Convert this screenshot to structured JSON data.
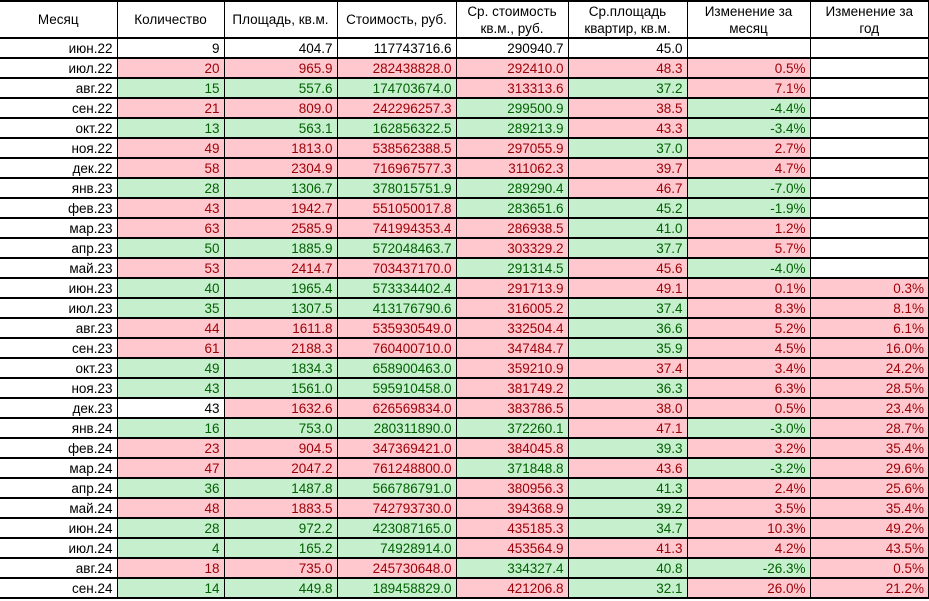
{
  "table": {
    "columns": [
      {
        "label": "Месяц"
      },
      {
        "label": "Количество"
      },
      {
        "label": "Площадь, кв.м."
      },
      {
        "label": "Стоимость, руб."
      },
      {
        "label": "Ср. стоимость кв.м., руб."
      },
      {
        "label": "Ср.площадь квартир, кв.м."
      },
      {
        "label": "Изменение за месяц"
      },
      {
        "label": "Изменение за год"
      }
    ],
    "legend": {
      "n": "plain white cell",
      "r": "red (worse) cell",
      "g": "green (better) cell",
      "e": "empty white cell"
    },
    "rows": [
      {
        "m": "июн.22",
        "c": [
          [
            "9",
            "n"
          ],
          [
            "404.7",
            "n"
          ],
          [
            "117743716.6",
            "n"
          ],
          [
            "290940.7",
            "n"
          ],
          [
            "45.0",
            "n"
          ],
          [
            "",
            "e"
          ],
          [
            "",
            "e"
          ]
        ]
      },
      {
        "m": "июл.22",
        "c": [
          [
            "20",
            "r"
          ],
          [
            "965.9",
            "r"
          ],
          [
            "282438828.0",
            "r"
          ],
          [
            "292410.0",
            "r"
          ],
          [
            "48.3",
            "r"
          ],
          [
            "0.5%",
            "r"
          ],
          [
            "",
            "e"
          ]
        ]
      },
      {
        "m": "авг.22",
        "c": [
          [
            "15",
            "g"
          ],
          [
            "557.6",
            "g"
          ],
          [
            "174703674.0",
            "g"
          ],
          [
            "313313.6",
            "r"
          ],
          [
            "37.2",
            "g"
          ],
          [
            "7.1%",
            "r"
          ],
          [
            "",
            "e"
          ]
        ]
      },
      {
        "m": "сен.22",
        "c": [
          [
            "21",
            "r"
          ],
          [
            "809.0",
            "r"
          ],
          [
            "242296257.3",
            "r"
          ],
          [
            "299500.9",
            "g"
          ],
          [
            "38.5",
            "r"
          ],
          [
            "-4.4%",
            "g"
          ],
          [
            "",
            "e"
          ]
        ]
      },
      {
        "m": "окт.22",
        "c": [
          [
            "13",
            "g"
          ],
          [
            "563.1",
            "g"
          ],
          [
            "162856322.5",
            "g"
          ],
          [
            "289213.9",
            "g"
          ],
          [
            "43.3",
            "r"
          ],
          [
            "-3.4%",
            "g"
          ],
          [
            "",
            "e"
          ]
        ]
      },
      {
        "m": "ноя.22",
        "c": [
          [
            "49",
            "r"
          ],
          [
            "1813.0",
            "r"
          ],
          [
            "538562388.5",
            "r"
          ],
          [
            "297055.9",
            "r"
          ],
          [
            "37.0",
            "g"
          ],
          [
            "2.7%",
            "r"
          ],
          [
            "",
            "e"
          ]
        ]
      },
      {
        "m": "дек.22",
        "c": [
          [
            "58",
            "r"
          ],
          [
            "2304.9",
            "r"
          ],
          [
            "716967577.3",
            "r"
          ],
          [
            "311062.3",
            "r"
          ],
          [
            "39.7",
            "r"
          ],
          [
            "4.7%",
            "r"
          ],
          [
            "",
            "e"
          ]
        ]
      },
      {
        "m": "янв.23",
        "c": [
          [
            "28",
            "g"
          ],
          [
            "1306.7",
            "g"
          ],
          [
            "378015751.9",
            "g"
          ],
          [
            "289290.4",
            "g"
          ],
          [
            "46.7",
            "r"
          ],
          [
            "-7.0%",
            "g"
          ],
          [
            "",
            "e"
          ]
        ]
      },
      {
        "m": "фев.23",
        "c": [
          [
            "43",
            "r"
          ],
          [
            "1942.7",
            "r"
          ],
          [
            "551050017.8",
            "r"
          ],
          [
            "283651.6",
            "g"
          ],
          [
            "45.2",
            "g"
          ],
          [
            "-1.9%",
            "g"
          ],
          [
            "",
            "e"
          ]
        ]
      },
      {
        "m": "мар.23",
        "c": [
          [
            "63",
            "r"
          ],
          [
            "2585.9",
            "r"
          ],
          [
            "741994353.4",
            "r"
          ],
          [
            "286938.5",
            "r"
          ],
          [
            "41.0",
            "g"
          ],
          [
            "1.2%",
            "r"
          ],
          [
            "",
            "e"
          ]
        ]
      },
      {
        "m": "апр.23",
        "c": [
          [
            "50",
            "g"
          ],
          [
            "1885.9",
            "g"
          ],
          [
            "572048463.7",
            "g"
          ],
          [
            "303329.2",
            "r"
          ],
          [
            "37.7",
            "g"
          ],
          [
            "5.7%",
            "r"
          ],
          [
            "",
            "e"
          ]
        ]
      },
      {
        "m": "май.23",
        "c": [
          [
            "53",
            "r"
          ],
          [
            "2414.7",
            "r"
          ],
          [
            "703437170.0",
            "r"
          ],
          [
            "291314.5",
            "g"
          ],
          [
            "45.6",
            "r"
          ],
          [
            "-4.0%",
            "g"
          ],
          [
            "",
            "e"
          ]
        ]
      },
      {
        "m": "июн.23",
        "c": [
          [
            "40",
            "g"
          ],
          [
            "1965.4",
            "g"
          ],
          [
            "573334402.4",
            "g"
          ],
          [
            "291713.9",
            "r"
          ],
          [
            "49.1",
            "r"
          ],
          [
            "0.1%",
            "r"
          ],
          [
            "0.3%",
            "r"
          ]
        ]
      },
      {
        "m": "июл.23",
        "c": [
          [
            "35",
            "g"
          ],
          [
            "1307.5",
            "g"
          ],
          [
            "413176790.6",
            "g"
          ],
          [
            "316005.2",
            "r"
          ],
          [
            "37.4",
            "g"
          ],
          [
            "8.3%",
            "r"
          ],
          [
            "8.1%",
            "r"
          ]
        ]
      },
      {
        "m": "авг.23",
        "c": [
          [
            "44",
            "r"
          ],
          [
            "1611.8",
            "r"
          ],
          [
            "535930549.0",
            "r"
          ],
          [
            "332504.4",
            "r"
          ],
          [
            "36.6",
            "g"
          ],
          [
            "5.2%",
            "r"
          ],
          [
            "6.1%",
            "r"
          ]
        ]
      },
      {
        "m": "сен.23",
        "c": [
          [
            "61",
            "r"
          ],
          [
            "2188.3",
            "r"
          ],
          [
            "760400710.0",
            "r"
          ],
          [
            "347484.7",
            "r"
          ],
          [
            "35.9",
            "g"
          ],
          [
            "4.5%",
            "r"
          ],
          [
            "16.0%",
            "r"
          ]
        ]
      },
      {
        "m": "окт.23",
        "c": [
          [
            "49",
            "g"
          ],
          [
            "1834.3",
            "g"
          ],
          [
            "658900463.0",
            "g"
          ],
          [
            "359210.9",
            "r"
          ],
          [
            "37.4",
            "r"
          ],
          [
            "3.4%",
            "r"
          ],
          [
            "24.2%",
            "r"
          ]
        ]
      },
      {
        "m": "ноя.23",
        "c": [
          [
            "43",
            "g"
          ],
          [
            "1561.0",
            "g"
          ],
          [
            "595910458.0",
            "g"
          ],
          [
            "381749.2",
            "r"
          ],
          [
            "36.3",
            "g"
          ],
          [
            "6.3%",
            "r"
          ],
          [
            "28.5%",
            "r"
          ]
        ]
      },
      {
        "m": "дек.23",
        "c": [
          [
            "43",
            "n"
          ],
          [
            "1632.6",
            "r"
          ],
          [
            "626569834.0",
            "r"
          ],
          [
            "383786.5",
            "r"
          ],
          [
            "38.0",
            "r"
          ],
          [
            "0.5%",
            "r"
          ],
          [
            "23.4%",
            "r"
          ]
        ]
      },
      {
        "m": "янв.24",
        "c": [
          [
            "16",
            "g"
          ],
          [
            "753.0",
            "g"
          ],
          [
            "280311890.0",
            "g"
          ],
          [
            "372260.1",
            "g"
          ],
          [
            "47.1",
            "r"
          ],
          [
            "-3.0%",
            "g"
          ],
          [
            "28.7%",
            "r"
          ]
        ]
      },
      {
        "m": "фев.24",
        "c": [
          [
            "23",
            "r"
          ],
          [
            "904.5",
            "r"
          ],
          [
            "347369421.0",
            "r"
          ],
          [
            "384045.8",
            "r"
          ],
          [
            "39.3",
            "g"
          ],
          [
            "3.2%",
            "r"
          ],
          [
            "35.4%",
            "r"
          ]
        ]
      },
      {
        "m": "мар.24",
        "c": [
          [
            "47",
            "r"
          ],
          [
            "2047.2",
            "r"
          ],
          [
            "761248800.0",
            "r"
          ],
          [
            "371848.8",
            "g"
          ],
          [
            "43.6",
            "r"
          ],
          [
            "-3.2%",
            "g"
          ],
          [
            "29.6%",
            "r"
          ]
        ]
      },
      {
        "m": "апр.24",
        "c": [
          [
            "36",
            "g"
          ],
          [
            "1487.8",
            "g"
          ],
          [
            "566786791.0",
            "g"
          ],
          [
            "380956.3",
            "r"
          ],
          [
            "41.3",
            "g"
          ],
          [
            "2.4%",
            "r"
          ],
          [
            "25.6%",
            "r"
          ]
        ]
      },
      {
        "m": "май.24",
        "c": [
          [
            "48",
            "r"
          ],
          [
            "1883.5",
            "r"
          ],
          [
            "742793730.0",
            "r"
          ],
          [
            "394368.9",
            "r"
          ],
          [
            "39.2",
            "g"
          ],
          [
            "3.5%",
            "r"
          ],
          [
            "35.4%",
            "r"
          ]
        ]
      },
      {
        "m": "июн.24",
        "c": [
          [
            "28",
            "g"
          ],
          [
            "972.2",
            "g"
          ],
          [
            "423087165.0",
            "g"
          ],
          [
            "435185.3",
            "r"
          ],
          [
            "34.7",
            "g"
          ],
          [
            "10.3%",
            "r"
          ],
          [
            "49.2%",
            "r"
          ]
        ]
      },
      {
        "m": "июл.24",
        "c": [
          [
            "4",
            "g"
          ],
          [
            "165.2",
            "g"
          ],
          [
            "74928914.0",
            "g"
          ],
          [
            "453564.9",
            "r"
          ],
          [
            "41.3",
            "r"
          ],
          [
            "4.2%",
            "r"
          ],
          [
            "43.5%",
            "r"
          ]
        ]
      },
      {
        "m": "авг.24",
        "c": [
          [
            "18",
            "r"
          ],
          [
            "735.0",
            "r"
          ],
          [
            "245730648.0",
            "r"
          ],
          [
            "334327.4",
            "g"
          ],
          [
            "40.8",
            "g"
          ],
          [
            "-26.3%",
            "g"
          ],
          [
            "0.5%",
            "r"
          ]
        ]
      },
      {
        "m": "сен.24",
        "c": [
          [
            "14",
            "g"
          ],
          [
            "449.8",
            "g"
          ],
          [
            "189458829.0",
            "g"
          ],
          [
            "421206.8",
            "r"
          ],
          [
            "32.1",
            "g"
          ],
          [
            "26.0%",
            "r"
          ],
          [
            "21.2%",
            "r"
          ]
        ]
      }
    ]
  },
  "colors": {
    "bad_bg": "#FFC7CE",
    "bad_text": "#9C0006",
    "good_bg": "#C6EFCE",
    "good_text": "#006100",
    "border": "#000000",
    "plain_text": "#000000"
  }
}
